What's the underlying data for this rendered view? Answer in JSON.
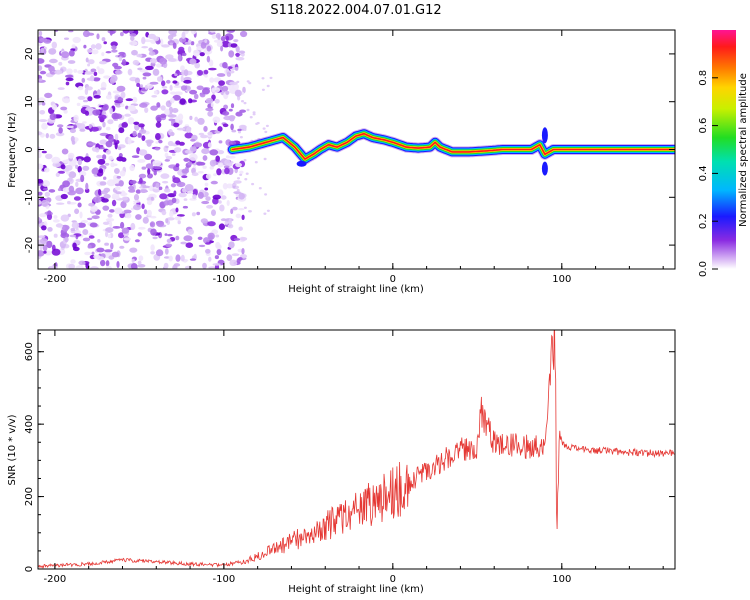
{
  "title": "S118.2022.004.07.01.G12",
  "colors": {
    "snr_line": "#e53935",
    "frame": "#000000"
  },
  "chart_data": [
    {
      "type": "heatmap",
      "xlabel": "Height of straight line (km)",
      "ylabel": "Frequency (Hz)",
      "xlim": [
        -210,
        167
      ],
      "ylim": [
        -25,
        25
      ],
      "xticks": [
        -200,
        -100,
        0,
        100
      ],
      "yticks": [
        -20,
        -10,
        0,
        10,
        20
      ],
      "colorbar": {
        "label": "Normalized spectral amplitude",
        "range": [
          0,
          1
        ],
        "ticks": [
          "0.0",
          "0.2",
          "0.4",
          "0.6",
          "0.8"
        ],
        "colormap": "rainbow (white-purple-blue-cyan-green-yellow-orange-red-magenta)"
      },
      "noise_region_x": [
        -210,
        -92
      ],
      "signal_track": {
        "x": [
          -95,
          -85,
          -75,
          -65,
          -58,
          -52,
          -47,
          -43,
          -38,
          -33,
          -27,
          -22,
          -17,
          -12,
          -5,
          0,
          8,
          15,
          22,
          25,
          28,
          35,
          45,
          55,
          65,
          75,
          82,
          87,
          90,
          95,
          100,
          110,
          167
        ],
        "frequency_hz": [
          0,
          0.5,
          1.5,
          2.5,
          0.5,
          -2,
          -1,
          0,
          1,
          0.5,
          1.5,
          2.8,
          3.3,
          2.5,
          2.0,
          1.5,
          0.5,
          0.3,
          0.5,
          1.5,
          0.5,
          -0.5,
          -0.5,
          -0.3,
          0,
          0,
          0,
          1.0,
          -1.0,
          0,
          0,
          0,
          0
        ]
      }
    },
    {
      "type": "line",
      "xlabel": "Height of straight line (km)",
      "ylabel": "SNR (10 * v/v)",
      "xlim": [
        -210,
        167
      ],
      "ylim": [
        0,
        660
      ],
      "xticks": [
        -200,
        -100,
        0,
        100
      ],
      "yticks": [
        0,
        200,
        400,
        600
      ],
      "series": [
        {
          "x": [
            -210,
            -180,
            -160,
            -140,
            -120,
            -100,
            -85,
            -75,
            -65,
            -55,
            -45,
            -35,
            -25,
            -15,
            -5,
            0,
            10,
            20,
            30,
            40,
            50,
            52,
            60,
            70,
            80,
            90,
            93,
            95,
            96,
            97,
            99,
            102,
            110,
            130,
            150,
            167
          ],
          "y": [
            8,
            14,
            25,
            20,
            14,
            10,
            25,
            45,
            65,
            85,
            105,
            130,
            150,
            175,
            195,
            210,
            240,
            270,
            300,
            330,
            340,
            440,
            345,
            340,
            340,
            345,
            500,
            600,
            660,
            150,
            360,
            340,
            330,
            325,
            320,
            320
          ]
        }
      ]
    }
  ]
}
